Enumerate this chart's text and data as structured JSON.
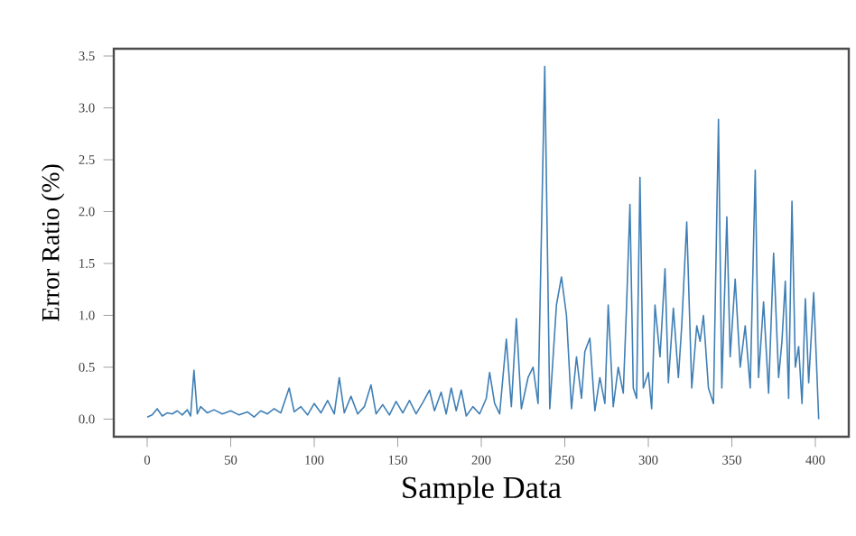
{
  "chart_data": {
    "type": "line",
    "xlabel": "Sample Data",
    "ylabel": "Error Ratio (%)",
    "xlim": [
      -20,
      420
    ],
    "ylim": [
      -0.17,
      3.57
    ],
    "xticks": [
      0,
      50,
      100,
      150,
      200,
      250,
      300,
      350,
      400
    ],
    "yticks": [
      {
        "value": 0,
        "label": "0.0"
      },
      {
        "value": 0.5,
        "label": "0.5"
      },
      {
        "value": 1,
        "label": "1.0"
      },
      {
        "value": 1.5,
        "label": "1.5"
      },
      {
        "value": 2,
        "label": "2.0"
      },
      {
        "value": 2.5,
        "label": "2.5"
      },
      {
        "value": 3,
        "label": "3.0"
      },
      {
        "value": 3.5,
        "label": "3.5"
      }
    ],
    "marker": "none",
    "line_style": "solid",
    "series": [
      {
        "color": "#3f7fb5",
        "x": [
          0,
          3,
          6,
          9,
          12,
          15,
          18,
          21,
          24,
          26,
          28,
          30,
          32,
          36,
          40,
          45,
          50,
          55,
          60,
          64,
          68,
          72,
          76,
          80,
          85,
          88,
          92,
          96,
          100,
          104,
          108,
          112,
          115,
          118,
          122,
          126,
          130,
          134,
          137,
          141,
          145,
          149,
          153,
          157,
          161,
          165,
          169,
          172,
          176,
          179,
          182,
          185,
          188,
          191,
          195,
          199,
          203,
          205,
          208,
          211,
          215,
          218,
          221,
          224,
          228,
          231,
          234,
          238,
          241,
          245,
          248,
          251,
          254,
          257,
          260,
          262,
          265,
          268,
          271,
          274,
          276,
          279,
          282,
          285,
          287,
          289,
          291,
          293,
          295,
          297,
          300,
          302,
          304,
          307,
          310,
          312,
          315,
          318,
          320,
          323,
          326,
          329,
          331,
          333,
          336,
          339,
          342,
          344,
          347,
          349,
          352,
          355,
          358,
          361,
          364,
          366,
          369,
          372,
          375,
          378,
          380,
          382,
          384,
          386,
          388,
          390,
          392,
          394,
          396,
          399,
          402
        ],
        "values": [
          0.02,
          0.04,
          0.1,
          0.03,
          0.06,
          0.05,
          0.08,
          0.04,
          0.09,
          0.03,
          0.47,
          0.05,
          0.12,
          0.06,
          0.09,
          0.05,
          0.08,
          0.04,
          0.07,
          0.02,
          0.08,
          0.05,
          0.1,
          0.06,
          0.3,
          0.07,
          0.12,
          0.04,
          0.15,
          0.06,
          0.18,
          0.05,
          0.4,
          0.06,
          0.22,
          0.05,
          0.12,
          0.33,
          0.05,
          0.14,
          0.04,
          0.17,
          0.06,
          0.18,
          0.05,
          0.16,
          0.28,
          0.08,
          0.26,
          0.05,
          0.3,
          0.08,
          0.28,
          0.03,
          0.12,
          0.05,
          0.2,
          0.45,
          0.15,
          0.05,
          0.77,
          0.12,
          0.97,
          0.1,
          0.4,
          0.5,
          0.15,
          3.4,
          0.1,
          1.1,
          1.37,
          1.0,
          0.1,
          0.6,
          0.2,
          0.65,
          0.78,
          0.08,
          0.4,
          0.15,
          1.1,
          0.12,
          0.5,
          0.25,
          1.1,
          2.07,
          0.3,
          0.2,
          2.33,
          0.3,
          0.45,
          0.1,
          1.1,
          0.6,
          1.45,
          0.35,
          1.07,
          0.4,
          0.9,
          1.9,
          0.3,
          0.9,
          0.75,
          1.0,
          0.3,
          0.15,
          2.89,
          0.3,
          1.95,
          0.6,
          1.35,
          0.5,
          0.9,
          0.3,
          2.4,
          0.4,
          1.13,
          0.25,
          1.6,
          0.4,
          0.75,
          1.33,
          0.2,
          2.1,
          0.5,
          0.7,
          0.15,
          1.16,
          0.35,
          1.22,
          0.0
        ]
      }
    ]
  }
}
